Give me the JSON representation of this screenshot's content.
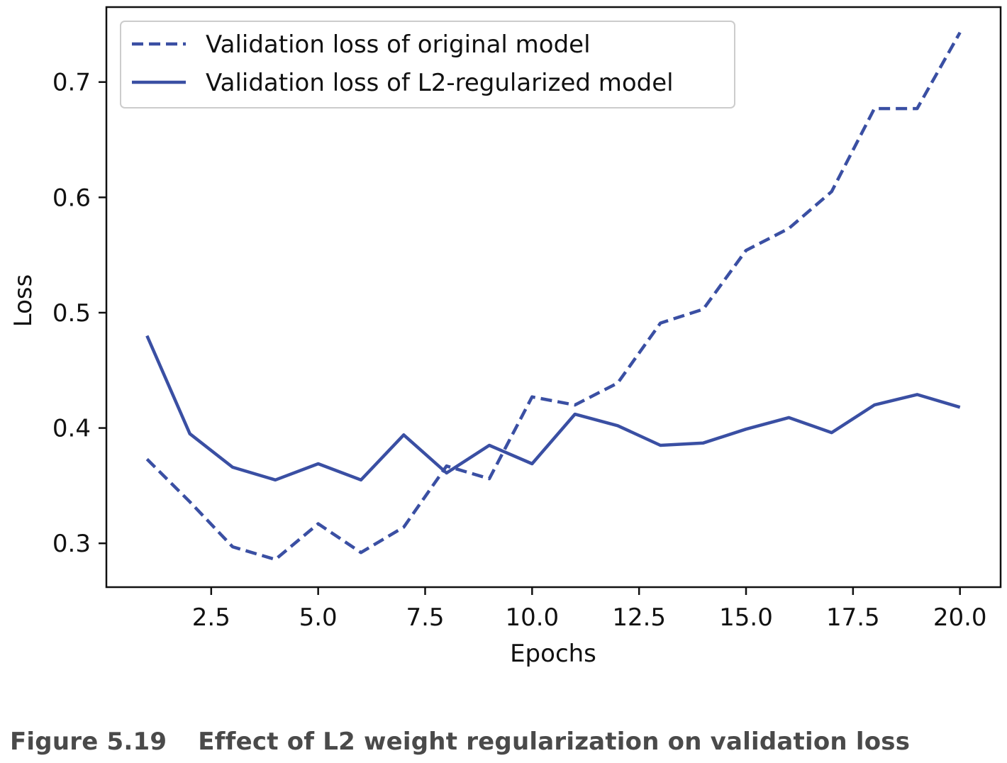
{
  "chart_data": {
    "type": "line",
    "xlabel": "Epochs",
    "ylabel": "Loss",
    "xlim": [
      0.05,
      20.95
    ],
    "ylim": [
      0.262,
      0.765
    ],
    "xticks": [
      "2.5",
      "5.0",
      "7.5",
      "10.0",
      "12.5",
      "15.0",
      "17.5",
      "20.0"
    ],
    "yticks": [
      "0.3",
      "0.4",
      "0.5",
      "0.6",
      "0.7"
    ],
    "legend_position": "top-left",
    "line_color": "#3a4fa3",
    "x": [
      1,
      2,
      3,
      4,
      5,
      6,
      7,
      8,
      9,
      10,
      11,
      12,
      13,
      14,
      15,
      16,
      17,
      18,
      19,
      20
    ],
    "series": [
      {
        "name": "Validation loss of original model",
        "style": "dashed",
        "values": [
          0.373,
          0.336,
          0.297,
          0.286,
          0.317,
          0.292,
          0.314,
          0.367,
          0.356,
          0.427,
          0.42,
          0.439,
          0.491,
          0.503,
          0.554,
          0.573,
          0.605,
          0.677,
          0.677,
          0.743
        ]
      },
      {
        "name": "Validation loss of L2-regularized model",
        "style": "solid",
        "values": [
          0.48,
          0.395,
          0.366,
          0.355,
          0.369,
          0.355,
          0.394,
          0.361,
          0.385,
          0.369,
          0.412,
          0.402,
          0.385,
          0.387,
          0.399,
          0.409,
          0.396,
          0.42,
          0.429,
          0.418
        ]
      }
    ]
  },
  "caption": {
    "number": "Figure 5.19",
    "text": "Effect of L2 weight regularization on validation loss"
  }
}
